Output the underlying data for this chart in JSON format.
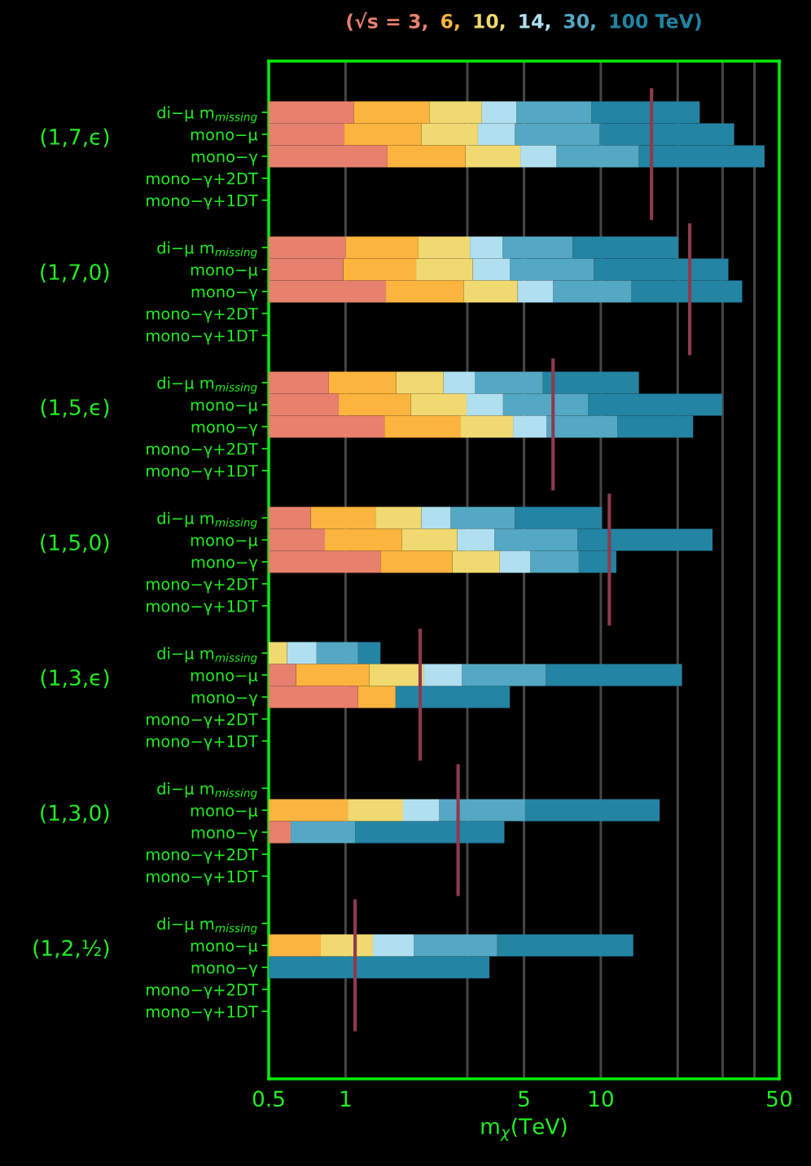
{
  "chart_data": {
    "type": "bar",
    "orientation": "horizontal",
    "log": "x",
    "grid": "x",
    "title": "(√s = 3, 6, 10, 14, 30, 100 TeV)",
    "xlabel": "m$_{χ}$(TeV)",
    "xlim": [
      0.5,
      50
    ],
    "xticks": [
      0.5,
      1,
      {
        "value": 3,
        "label": null
      },
      5,
      10,
      {
        "value": 20,
        "label": null
      },
      {
        "value": 30,
        "label": null
      },
      {
        "value": 40,
        "label": null
      },
      50
    ],
    "categories": [
      "di−μ m$_{missing}$",
      "mono−μ",
      "mono−γ",
      "mono−γ+2DT",
      "mono−γ+1DT",
      "di−μ m$_{missing}$",
      "mono−μ",
      "mono−γ",
      "mono−γ+2DT",
      "mono−γ+1DT",
      "di−μ m$_{missing}$",
      "mono−μ",
      "mono−γ",
      "mono−γ+2DT",
      "mono−γ+1DT",
      "di−μ m$_{missing}$",
      "mono−μ",
      "mono−γ",
      "mono−γ+2DT",
      "mono−γ+1DT",
      "di−μ m$_{missing}$",
      "mono−μ",
      "mono−γ",
      "mono−γ+2DT",
      "mono−γ+1DT",
      "di−μ m$_{missing}$",
      "mono−μ",
      "mono−γ",
      "mono−γ+2DT",
      "mono−γ+1DT",
      "di−μ m$_{missing}$",
      "mono−μ",
      "mono−γ",
      "mono−γ+2DT",
      "mono−γ+1DT"
    ],
    "annotations": [
      "(1,7,ϵ)",
      "(1,7,0)",
      "(1,5,ϵ)",
      "(1,5,0)",
      "(1,3,ϵ)",
      "(1,3,0)",
      "(1,2,½)"
    ],
    "series": [
      {
        "color": "#e8806e",
        "values": [
          0.58,
          0.49,
          0.96,
          null,
          null,
          0.5,
          0.48,
          0.94,
          null,
          null,
          0.36,
          0.44,
          0.92,
          null,
          null,
          0.23,
          0.33,
          0.87,
          null,
          null,
          null,
          0.14,
          0.62,
          null,
          null,
          null,
          null,
          0.11,
          null,
          null,
          null,
          null,
          null,
          null,
          null
        ],
        "base": [
          0.5,
          0.5,
          0.5,
          null,
          null,
          0.5,
          0.5,
          0.5,
          null,
          null,
          0.5,
          0.5,
          0.5,
          null,
          null,
          0.5,
          0.5,
          0.5,
          null,
          null,
          null,
          0.5,
          0.5,
          null,
          null,
          null,
          null,
          0.5,
          null,
          null,
          null,
          null,
          null,
          null,
          null
        ]
      },
      {
        "color": "#fbb43e",
        "values": [
          1.05,
          0.99,
          1.49,
          null,
          null,
          0.93,
          0.91,
          1.46,
          null,
          null,
          0.72,
          0.86,
          1.41,
          null,
          null,
          0.58,
          0.83,
          1.25,
          null,
          null,
          null,
          0.6,
          0.45,
          null,
          null,
          null,
          0.52,
          null,
          null,
          null,
          null,
          0.3,
          null,
          null,
          null
        ],
        "base": [
          1.08,
          0.99,
          1.46,
          null,
          null,
          1.0,
          0.98,
          1.44,
          null,
          null,
          0.86,
          0.94,
          1.42,
          null,
          null,
          0.73,
          0.83,
          1.37,
          null,
          null,
          null,
          0.64,
          1.12,
          null,
          null,
          null,
          0.5,
          null,
          null,
          null,
          null,
          0.5,
          null,
          null,
          null
        ]
      },
      {
        "color": "#f0d970",
        "values": [
          1.29,
          1.32,
          1.89,
          null,
          null,
          1.14,
          1.26,
          1.82,
          null,
          null,
          0.84,
          1.18,
          1.7,
          null,
          null,
          0.67,
          1.08,
          1.4,
          null,
          null,
          0.09,
          0.78,
          null,
          null,
          null,
          null,
          0.66,
          null,
          null,
          null,
          null,
          0.48,
          null,
          null,
          null
        ],
        "base": [
          2.13,
          1.98,
          2.95,
          null,
          null,
          1.93,
          1.89,
          2.9,
          null,
          null,
          1.58,
          1.8,
          2.83,
          null,
          null,
          1.31,
          1.66,
          2.62,
          null,
          null,
          0.5,
          1.24,
          null,
          null,
          null,
          null,
          1.02,
          null,
          null,
          null,
          null,
          0.8,
          null,
          null,
          null
        ]
      },
      {
        "color": "#b0e0ef",
        "values": [
          1.25,
          1.31,
          1.87,
          null,
          null,
          1.05,
          1.25,
          1.78,
          null,
          null,
          0.8,
          1.16,
          1.61,
          null,
          null,
          0.6,
          1.09,
          1.28,
          null,
          null,
          0.18,
          0.84,
          null,
          null,
          null,
          null,
          0.65,
          null,
          null,
          null,
          null,
          0.57,
          null,
          null,
          null
        ],
        "base": [
          3.42,
          3.3,
          4.84,
          null,
          null,
          3.07,
          3.15,
          4.72,
          null,
          null,
          2.42,
          2.98,
          4.53,
          null,
          null,
          1.98,
          2.74,
          4.02,
          null,
          null,
          0.59,
          2.02,
          null,
          null,
          null,
          null,
          1.68,
          null,
          null,
          null,
          null,
          1.28,
          null,
          null,
          null
        ]
      },
      {
        "color": "#55a8c3",
        "values": [
          4.53,
          5.29,
          7.39,
          null,
          null,
          3.64,
          5.0,
          6.7,
          null,
          null,
          2.71,
          4.76,
          5.46,
          null,
          null,
          2.03,
          4.27,
          2.9,
          null,
          null,
          0.35,
          3.24,
          null,
          null,
          null,
          null,
          2.72,
          0.48,
          null,
          null,
          null,
          2.08,
          null,
          null,
          null
        ],
        "base": [
          4.67,
          4.61,
          6.71,
          null,
          null,
          4.12,
          4.4,
          6.5,
          null,
          null,
          3.22,
          4.14,
          6.14,
          null,
          null,
          2.58,
          3.83,
          5.3,
          null,
          null,
          0.77,
          2.86,
          null,
          null,
          null,
          null,
          2.33,
          0.61,
          null,
          null,
          null,
          1.85,
          null,
          null,
          null
        ]
      },
      {
        "color": "#2384a3",
        "values": [
          15.2,
          23.4,
          29.7,
          null,
          null,
          12.34,
          22.2,
          22.6,
          null,
          null,
          8.17,
          21.0,
          11.4,
          null,
          null,
          5.49,
          19.3,
          3.3,
          null,
          null,
          0.25,
          14.7,
          2.83,
          null,
          null,
          null,
          11.95,
          3.1,
          null,
          null,
          null,
          9.47,
          3.16,
          null,
          null
        ],
        "base": [
          9.2,
          9.9,
          14.1,
          null,
          null,
          7.76,
          9.4,
          13.2,
          null,
          null,
          5.93,
          8.9,
          11.6,
          null,
          null,
          4.61,
          8.1,
          8.2,
          null,
          null,
          1.12,
          6.1,
          1.57,
          null,
          null,
          null,
          5.05,
          1.09,
          null,
          null,
          null,
          3.93,
          0.5,
          null,
          null
        ]
      }
    ],
    "ref_lines": [
      {
        "axis": "x",
        "value": 15.8,
        "color": "#8e3a4f"
      },
      {
        "axis": "x",
        "value": 22.3,
        "color": "#8e3a4f"
      },
      {
        "axis": "x",
        "value": 6.5,
        "color": "#8e3a4f"
      },
      {
        "axis": "x",
        "value": 10.8,
        "color": "#8e3a4f"
      },
      {
        "axis": "x",
        "value": 1.96,
        "color": "#8e3a4f"
      },
      {
        "axis": "x",
        "value": 2.76,
        "color": "#8e3a4f"
      },
      {
        "axis": "x",
        "value": 1.09,
        "color": "#8e3a4f"
      }
    ]
  }
}
